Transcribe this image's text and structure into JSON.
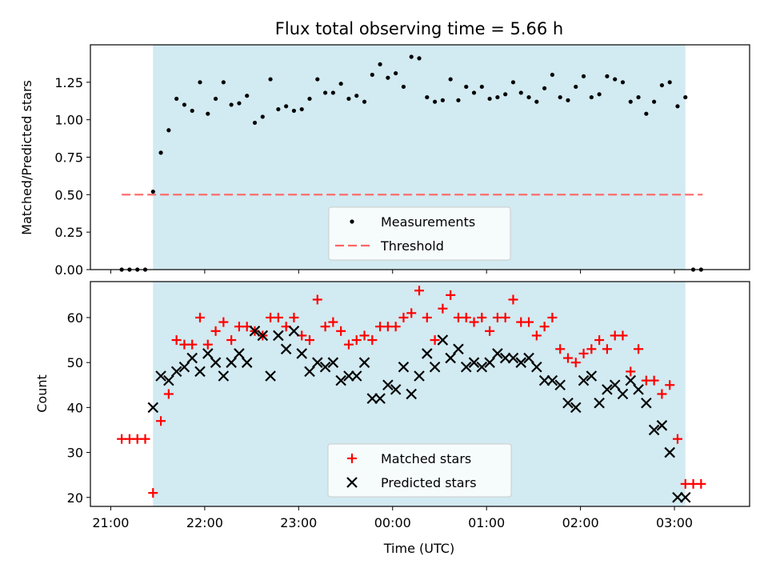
{
  "chart_data": [
    {
      "type": "scatter",
      "title": "Flux total observing time = 5.66 h",
      "ylabel": "Matched/Predicted stars",
      "xlabel": "",
      "xlim": [
        "20:47",
        "03:48"
      ],
      "ylim": [
        0,
        1.5
      ],
      "yticks": [
        "0.00",
        "0.25",
        "0.50",
        "0.75",
        "1.00",
        "1.25"
      ],
      "ytick_values": [
        0,
        0.25,
        0.5,
        0.75,
        1.0,
        1.25
      ],
      "shaded_span": [
        "21:27",
        "03:07"
      ],
      "shade_color": "#add8e6",
      "legend_placement": "lower center",
      "threshold": {
        "name": "Threshold",
        "value": 0.5,
        "x_range": [
          "21:07",
          "03:18"
        ],
        "color": "#ff6666",
        "style": "dashed"
      },
      "series": [
        {
          "name": "Measurements",
          "color": "#000000",
          "marker": "dot",
          "x": [
            "21:07",
            "21:12",
            "21:17",
            "21:22",
            "21:27",
            "21:32",
            "21:37",
            "21:42",
            "21:47",
            "21:52",
            "21:57",
            "22:02",
            "22:07",
            "22:12",
            "22:17",
            "22:22",
            "22:27",
            "22:32",
            "22:37",
            "22:42",
            "22:47",
            "22:52",
            "22:57",
            "23:02",
            "23:07",
            "23:12",
            "23:17",
            "23:22",
            "23:27",
            "23:32",
            "23:37",
            "23:42",
            "23:47",
            "23:52",
            "23:57",
            "00:02",
            "00:07",
            "00:12",
            "00:17",
            "00:22",
            "00:27",
            "00:32",
            "00:37",
            "00:42",
            "00:47",
            "00:52",
            "00:57",
            "01:02",
            "01:07",
            "01:12",
            "01:17",
            "01:22",
            "01:27",
            "01:32",
            "01:37",
            "01:42",
            "01:47",
            "01:52",
            "01:57",
            "02:02",
            "02:07",
            "02:12",
            "02:17",
            "02:22",
            "02:27",
            "02:32",
            "02:37",
            "02:42",
            "02:47",
            "02:52",
            "02:57",
            "03:02",
            "03:07",
            "03:12",
            "03:17"
          ],
          "y": [
            0,
            0,
            0,
            0,
            0.52,
            0.78,
            0.93,
            1.14,
            1.1,
            1.06,
            1.25,
            1.04,
            1.14,
            1.25,
            1.1,
            1.11,
            1.16,
            0.98,
            1.02,
            1.27,
            1.07,
            1.09,
            1.06,
            1.07,
            1.14,
            1.27,
            1.18,
            1.18,
            1.24,
            1.14,
            1.16,
            1.12,
            1.3,
            1.37,
            1.28,
            1.31,
            1.22,
            1.42,
            1.41,
            1.15,
            1.12,
            1.13,
            1.27,
            1.13,
            1.22,
            1.18,
            1.22,
            1.14,
            1.15,
            1.17,
            1.25,
            1.18,
            1.15,
            1.12,
            1.21,
            1.3,
            1.15,
            1.13,
            1.22,
            1.29,
            1.15,
            1.17,
            1.29,
            1.27,
            1.25,
            1.12,
            1.15,
            1.04,
            1.12,
            1.23,
            1.25,
            1.09,
            1.15,
            0,
            0
          ]
        }
      ]
    },
    {
      "type": "scatter",
      "title": "",
      "xlabel": "Time (UTC)",
      "ylabel": "Count",
      "xlim": [
        "20:47",
        "03:48"
      ],
      "ylim": [
        18,
        68
      ],
      "xticks": [
        "21:00",
        "22:00",
        "23:00",
        "00:00",
        "01:00",
        "02:00",
        "03:00"
      ],
      "yticks": [
        "20",
        "30",
        "40",
        "50",
        "60"
      ],
      "ytick_values": [
        20,
        30,
        40,
        50,
        60
      ],
      "shaded_span": [
        "21:27",
        "03:07"
      ],
      "shade_color": "#add8e6",
      "legend_placement": "lower center",
      "series": [
        {
          "name": "Matched stars",
          "color": "#ff0000",
          "marker": "plus",
          "x": [
            "21:07",
            "21:12",
            "21:17",
            "21:22",
            "21:27",
            "21:32",
            "21:37",
            "21:42",
            "21:47",
            "21:52",
            "21:57",
            "22:02",
            "22:07",
            "22:12",
            "22:17",
            "22:22",
            "22:27",
            "22:32",
            "22:37",
            "22:42",
            "22:47",
            "22:52",
            "22:57",
            "23:02",
            "23:07",
            "23:12",
            "23:17",
            "23:22",
            "23:27",
            "23:32",
            "23:37",
            "23:42",
            "23:47",
            "23:52",
            "23:57",
            "00:02",
            "00:07",
            "00:12",
            "00:17",
            "00:22",
            "00:27",
            "00:32",
            "00:37",
            "00:42",
            "00:47",
            "00:52",
            "00:57",
            "01:02",
            "01:07",
            "01:12",
            "01:17",
            "01:22",
            "01:27",
            "01:32",
            "01:37",
            "01:42",
            "01:47",
            "01:52",
            "01:57",
            "02:02",
            "02:07",
            "02:12",
            "02:17",
            "02:22",
            "02:27",
            "02:32",
            "02:37",
            "02:42",
            "02:47",
            "02:52",
            "02:57",
            "03:02",
            "03:07",
            "03:12",
            "03:17"
          ],
          "y": [
            33,
            33,
            33,
            33,
            21,
            37,
            43,
            55,
            54,
            54,
            60,
            54,
            57,
            59,
            55,
            58,
            58,
            57,
            56,
            60,
            60,
            58,
            60,
            56,
            55,
            64,
            58,
            59,
            57,
            54,
            55,
            56,
            55,
            58,
            58,
            58,
            60,
            61,
            66,
            60,
            55,
            62,
            65,
            60,
            60,
            59,
            60,
            57,
            60,
            60,
            64,
            59,
            59,
            56,
            58,
            60,
            53,
            51,
            50,
            52,
            53,
            55,
            53,
            56,
            56,
            48,
            53,
            46,
            46,
            43,
            45,
            33,
            23,
            23,
            23
          ]
        },
        {
          "name": "Predicted stars",
          "color": "#000000",
          "marker": "x",
          "x": [
            "21:27",
            "21:32",
            "21:37",
            "21:42",
            "21:47",
            "21:52",
            "21:57",
            "22:02",
            "22:07",
            "22:12",
            "22:17",
            "22:22",
            "22:27",
            "22:32",
            "22:37",
            "22:42",
            "22:47",
            "22:52",
            "22:57",
            "23:02",
            "23:07",
            "23:12",
            "23:17",
            "23:22",
            "23:27",
            "23:32",
            "23:37",
            "23:42",
            "23:47",
            "23:52",
            "23:57",
            "00:02",
            "00:07",
            "00:12",
            "00:17",
            "00:22",
            "00:27",
            "00:32",
            "00:37",
            "00:42",
            "00:47",
            "00:52",
            "00:57",
            "01:02",
            "01:07",
            "01:12",
            "01:17",
            "01:22",
            "01:27",
            "01:32",
            "01:37",
            "01:42",
            "01:47",
            "01:52",
            "01:57",
            "02:02",
            "02:07",
            "02:12",
            "02:17",
            "02:22",
            "02:27",
            "02:32",
            "02:37",
            "02:42",
            "02:47",
            "02:52",
            "02:57",
            "03:02",
            "03:07"
          ],
          "y": [
            40,
            47,
            46,
            48,
            49,
            51,
            48,
            52,
            50,
            47,
            50,
            52,
            50,
            57,
            56,
            47,
            56,
            53,
            57,
            52,
            48,
            50,
            49,
            50,
            46,
            47,
            47,
            50,
            42,
            42,
            45,
            44,
            49,
            43,
            47,
            52,
            49,
            55,
            51,
            53,
            49,
            50,
            49,
            50,
            52,
            51,
            51,
            50,
            51,
            49,
            46,
            46,
            45,
            41,
            40,
            46,
            47,
            41,
            44,
            45,
            43,
            46,
            44,
            41,
            35,
            36,
            30,
            20,
            20
          ]
        }
      ]
    }
  ]
}
